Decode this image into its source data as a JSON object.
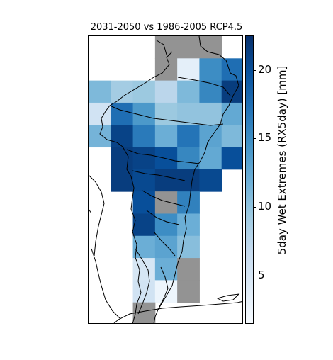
{
  "title": "2031-2050 vs 1986-2005 RCP4.5",
  "colorbar": {
    "label": "5day Wet Extremes (RX5day) [mm]",
    "range": [
      1.5,
      22.5
    ],
    "ticks": [
      {
        "value": 5,
        "label": "5"
      },
      {
        "value": 10,
        "label": "10"
      },
      {
        "value": 15,
        "label": "15"
      },
      {
        "value": 20,
        "label": "20"
      }
    ],
    "colormap": "Blues",
    "colors": [
      "#f7fbff",
      "#deebf7",
      "#c6dbef",
      "#9ecae1",
      "#6baed6",
      "#4292c6",
      "#2171b5",
      "#08519c",
      "#08306b"
    ],
    "no_data_color": "#939393"
  },
  "grid": {
    "cols": 7,
    "rows": 13,
    "cells": [
      [
        null,
        null,
        null,
        "nd",
        "nd",
        "nd",
        null
      ],
      [
        null,
        null,
        null,
        "nd",
        3.5,
        15.0,
        17.5
      ],
      [
        11.0,
        9.0,
        9.5,
        7.5,
        11.0,
        15.5,
        21.5
      ],
      [
        5.5,
        17.5,
        14.0,
        9.5,
        10.0,
        10.0,
        12.5
      ],
      [
        11.5,
        21.0,
        16.5,
        12.0,
        17.0,
        13.0,
        11.0
      ],
      [
        null,
        21.5,
        21.0,
        20.0,
        15.5,
        12.5,
        20.0
      ],
      [
        null,
        21.5,
        20.5,
        21.5,
        21.5,
        20.5,
        null
      ],
      [
        null,
        null,
        20.0,
        "nd",
        16.0,
        null,
        null
      ],
      [
        null,
        null,
        21.0,
        15.0,
        12.0,
        null,
        null
      ],
      [
        null,
        null,
        12.0,
        13.0,
        10.5,
        null,
        null
      ],
      [
        null,
        null,
        5.0,
        12.0,
        "nd",
        null,
        null
      ],
      [
        null,
        null,
        5.5,
        2.5,
        "nd",
        null,
        null
      ],
      [
        null,
        null,
        "nd",
        null,
        null,
        null,
        null
      ]
    ]
  }
}
